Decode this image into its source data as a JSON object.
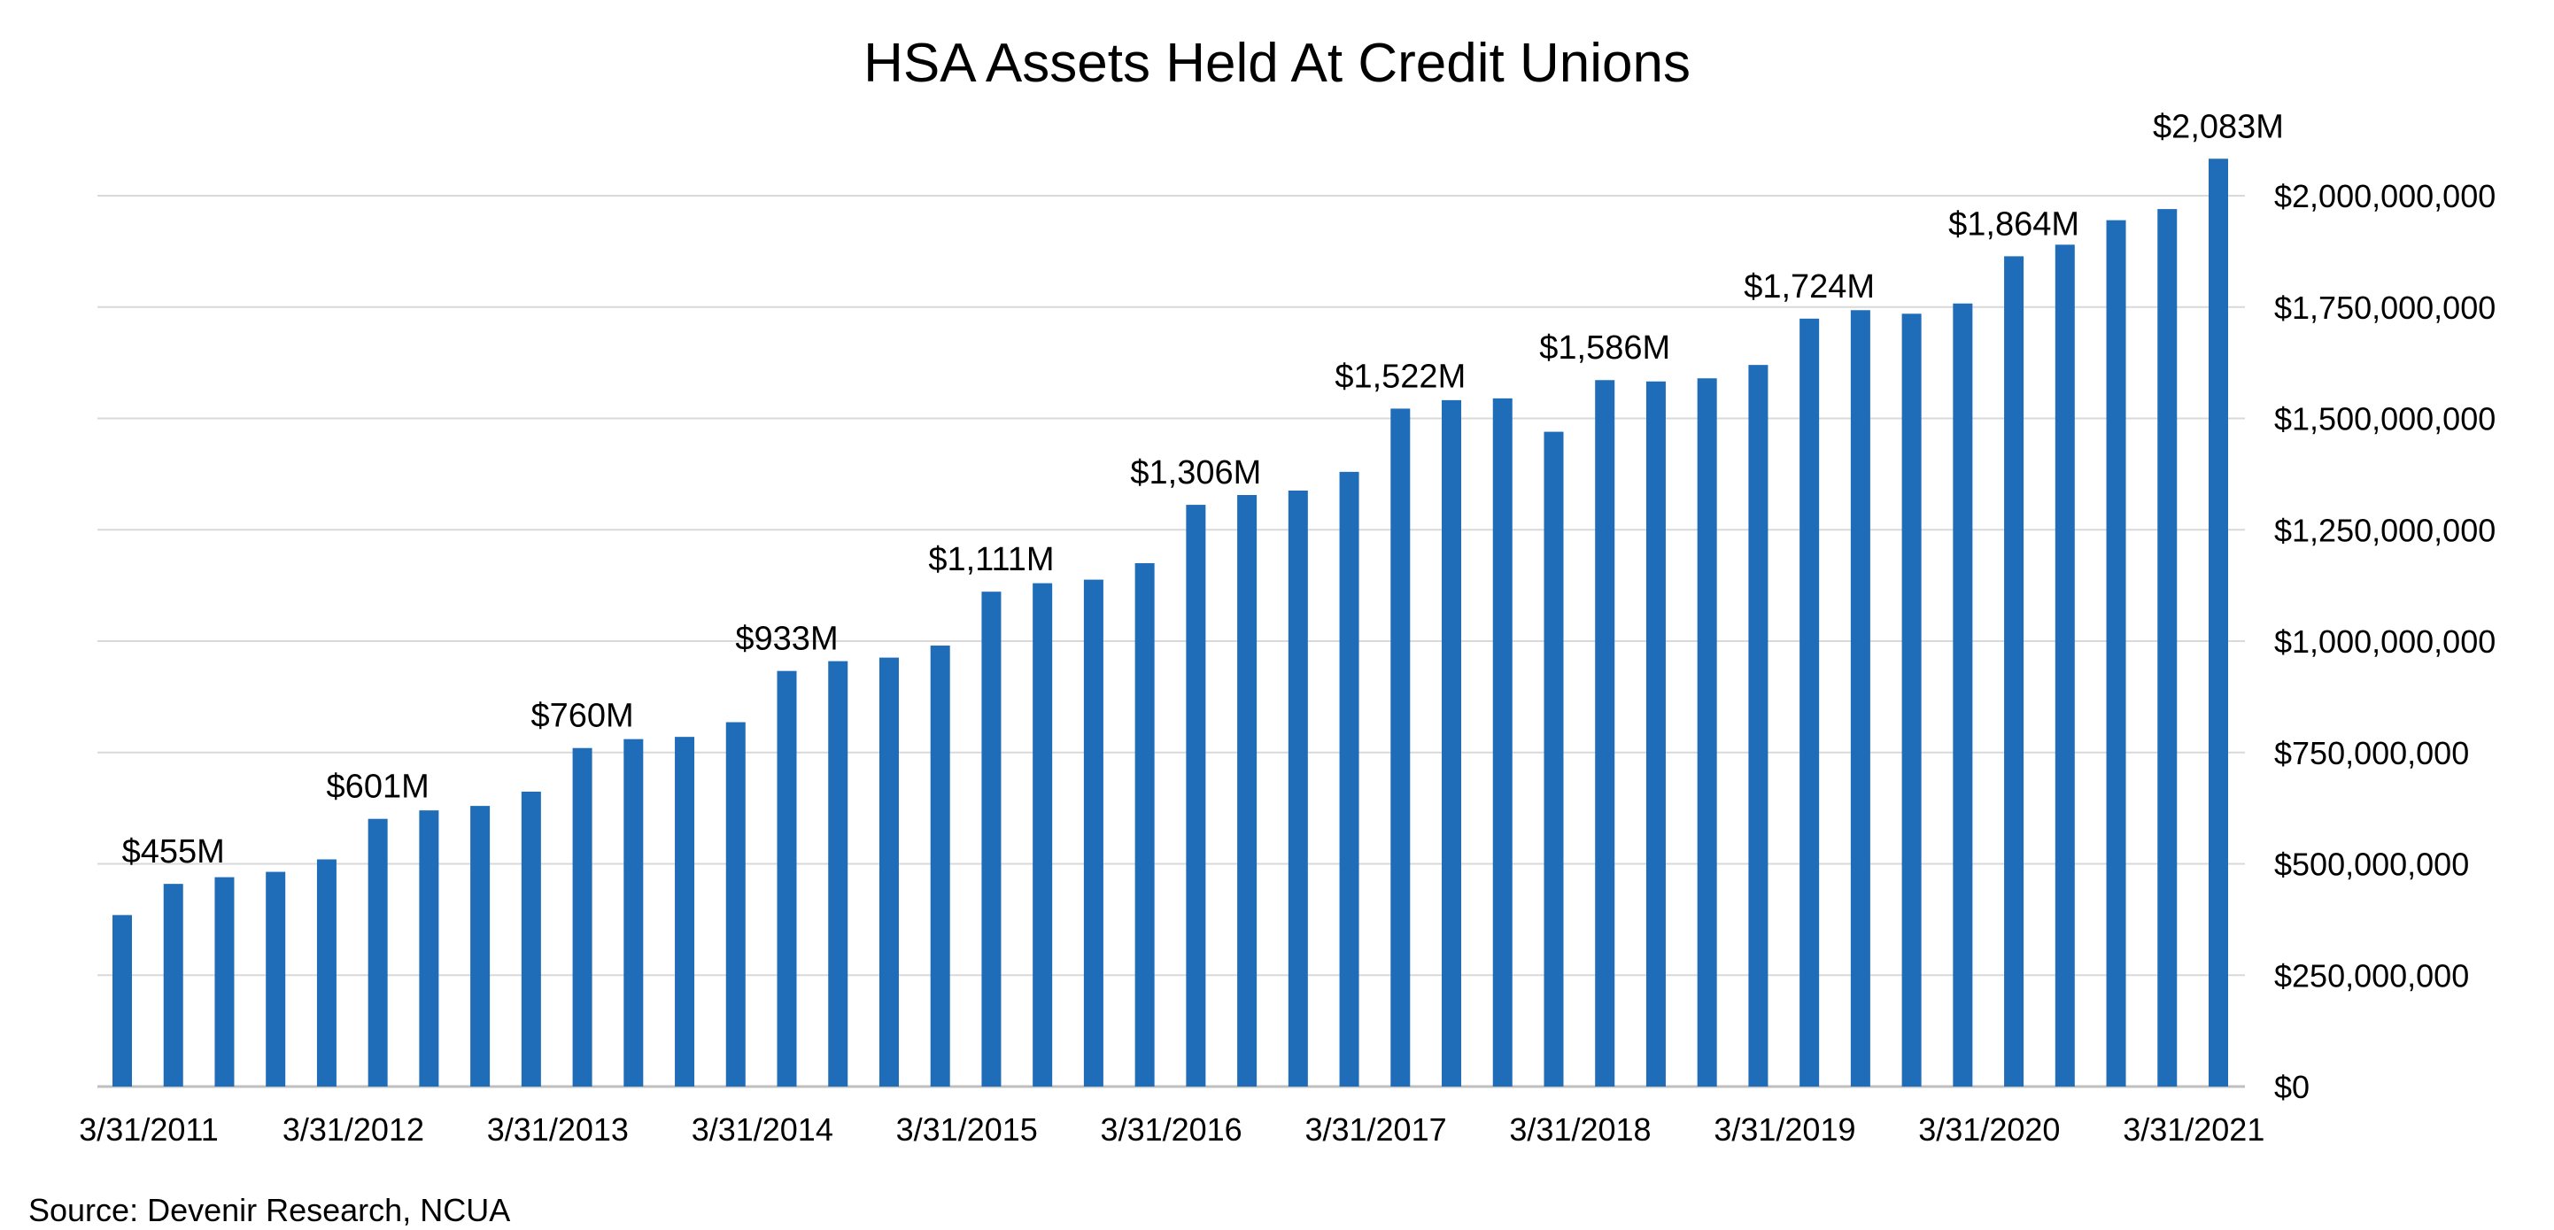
{
  "chart_data": {
    "type": "bar",
    "title": "HSA Assets Held At Credit Unions",
    "color": "#1f6cb8",
    "grid": true,
    "y_axis_side": "right",
    "ylim": [
      0,
      2000000000
    ],
    "y_ticks": [
      {
        "value": 0,
        "label": "$0"
      },
      {
        "value": 250000000,
        "label": "$250,000,000"
      },
      {
        "value": 500000000,
        "label": "$500,000,000"
      },
      {
        "value": 750000000,
        "label": "$750,000,000"
      },
      {
        "value": 1000000000,
        "label": "$1,000,000,000"
      },
      {
        "value": 1250000000,
        "label": "$1,250,000,000"
      },
      {
        "value": 1500000000,
        "label": "$1,500,000,000"
      },
      {
        "value": 1750000000,
        "label": "$1,750,000,000"
      },
      {
        "value": 2000000000,
        "label": "$2,000,000,000"
      }
    ],
    "x_tick_labels": [
      {
        "index": 0,
        "label": "3/31/2011"
      },
      {
        "index": 4,
        "label": "3/31/2012"
      },
      {
        "index": 8,
        "label": "3/31/2013"
      },
      {
        "index": 12,
        "label": "3/31/2014"
      },
      {
        "index": 16,
        "label": "3/31/2015"
      },
      {
        "index": 20,
        "label": "3/31/2016"
      },
      {
        "index": 24,
        "label": "3/31/2017"
      },
      {
        "index": 28,
        "label": "3/31/2018"
      },
      {
        "index": 32,
        "label": "3/31/2019"
      },
      {
        "index": 36,
        "label": "3/31/2020"
      },
      {
        "index": 40,
        "label": "3/31/2021"
      }
    ],
    "values": [
      385000000,
      455000000,
      470000000,
      482000000,
      510000000,
      601000000,
      620000000,
      630000000,
      662000000,
      760000000,
      780000000,
      785000000,
      818000000,
      933000000,
      955000000,
      963000000,
      990000000,
      1111000000,
      1130000000,
      1138000000,
      1175000000,
      1306000000,
      1328000000,
      1338000000,
      1380000000,
      1522000000,
      1541000000,
      1545000000,
      1470000000,
      1586000000,
      1583000000,
      1590000000,
      1620000000,
      1724000000,
      1743000000,
      1735000000,
      1758000000,
      1864000000,
      1890000000,
      1945000000,
      1970000000,
      2083000000
    ],
    "data_labels": [
      {
        "index": 1,
        "label": "$455M"
      },
      {
        "index": 5,
        "label": "$601M"
      },
      {
        "index": 9,
        "label": "$760M"
      },
      {
        "index": 13,
        "label": "$933M"
      },
      {
        "index": 17,
        "label": "$1,111M"
      },
      {
        "index": 21,
        "label": "$1,306M"
      },
      {
        "index": 25,
        "label": "$1,522M"
      },
      {
        "index": 29,
        "label": "$1,586M"
      },
      {
        "index": 33,
        "label": "$1,724M"
      },
      {
        "index": 37,
        "label": "$1,864M"
      },
      {
        "index": 41,
        "label": "$2,083M"
      }
    ]
  },
  "source": "Source: Devenir Research, NCUA"
}
